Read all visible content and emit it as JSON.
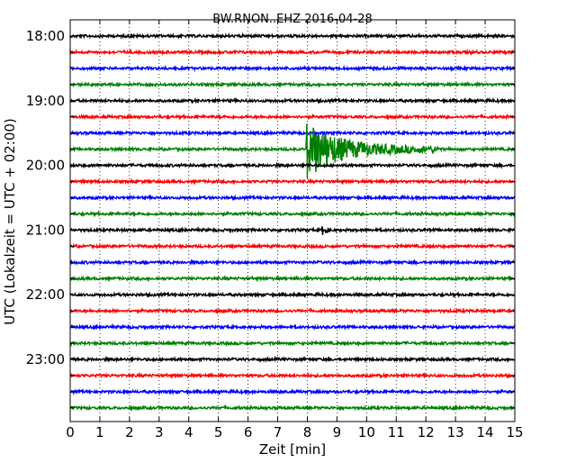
{
  "chart_data": {
    "type": "line",
    "title": "BW.RNON..EHZ 2016-04-28",
    "xlabel": "Zeit  [min]",
    "ylabel": "UTC (Lokalzeit = UTC + 02:00)",
    "xlim": [
      0,
      15
    ],
    "x_ticks": [
      "0",
      "1",
      "2",
      "3",
      "4",
      "5",
      "6",
      "7",
      "8",
      "9",
      "10",
      "11",
      "12",
      "13",
      "14",
      "15"
    ],
    "row_labels": [
      "18:00",
      "",
      "",
      "",
      "19:00",
      "",
      "",
      "",
      "20:00",
      "",
      "",
      "",
      "21:00",
      "",
      "",
      "",
      "22:00",
      "",
      "",
      "",
      "23:00",
      "",
      "",
      ""
    ],
    "row_colors": [
      "#000000",
      "#ff0000",
      "#0000ff",
      "#008000"
    ],
    "trace_minutes_per_row": 15,
    "grid": "vertical dotted",
    "events": [
      {
        "row": 7,
        "start_min": 7.95,
        "peak_amplitude": 1.0,
        "duration_min": 4.5,
        "note": "main wave packet"
      },
      {
        "row": 12,
        "start_min": 8.5,
        "peak_amplitude": 0.25,
        "duration_min": 0.35,
        "note": "small spike"
      }
    ]
  }
}
